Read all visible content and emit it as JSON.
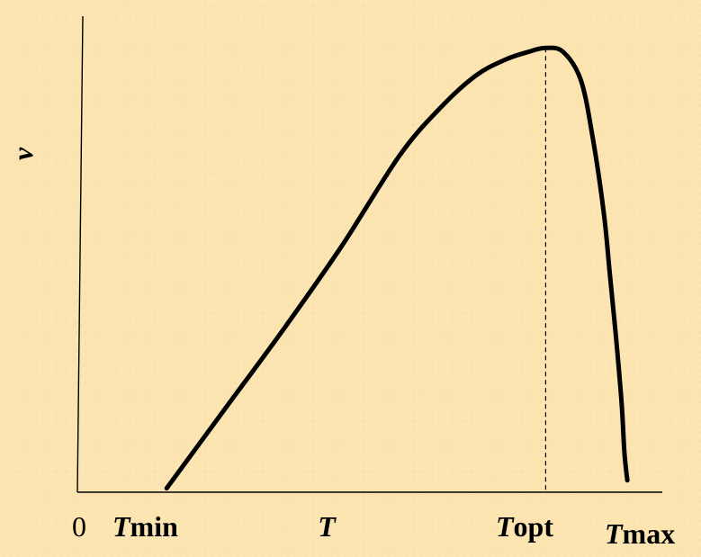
{
  "chart_data": {
    "type": "line",
    "title": "",
    "ylabel": "v",
    "xlabel": "T",
    "origin_label": "0",
    "x_markers": [
      {
        "italic": "T",
        "sub": "min",
        "x": 0.15
      },
      {
        "italic": "T",
        "sub": "opt",
        "x": 0.8
      },
      {
        "italic": "T",
        "sub": "max",
        "x": 0.94
      }
    ],
    "optimum_guide": {
      "x": 0.8,
      "style": "dashed"
    },
    "series": [
      {
        "x": [
          0.15,
          0.25,
          0.35,
          0.45,
          0.55,
          0.62,
          0.68,
          0.73,
          0.77,
          0.8,
          0.83,
          0.86,
          0.88,
          0.9,
          0.91,
          0.92,
          0.93,
          0.935,
          0.94
        ],
        "y": [
          0.01,
          0.21,
          0.41,
          0.62,
          0.85,
          0.97,
          1.05,
          1.09,
          1.11,
          1.12,
          1.11,
          1.04,
          0.9,
          0.7,
          0.55,
          0.4,
          0.23,
          0.1,
          0.03
        ]
      }
    ],
    "xlim": [
      0,
      1.0
    ],
    "ylim": [
      0,
      1.2
    ],
    "grid": false,
    "legend": "none",
    "colors": {
      "line": "#000000",
      "background": "#fbe4b0"
    }
  }
}
